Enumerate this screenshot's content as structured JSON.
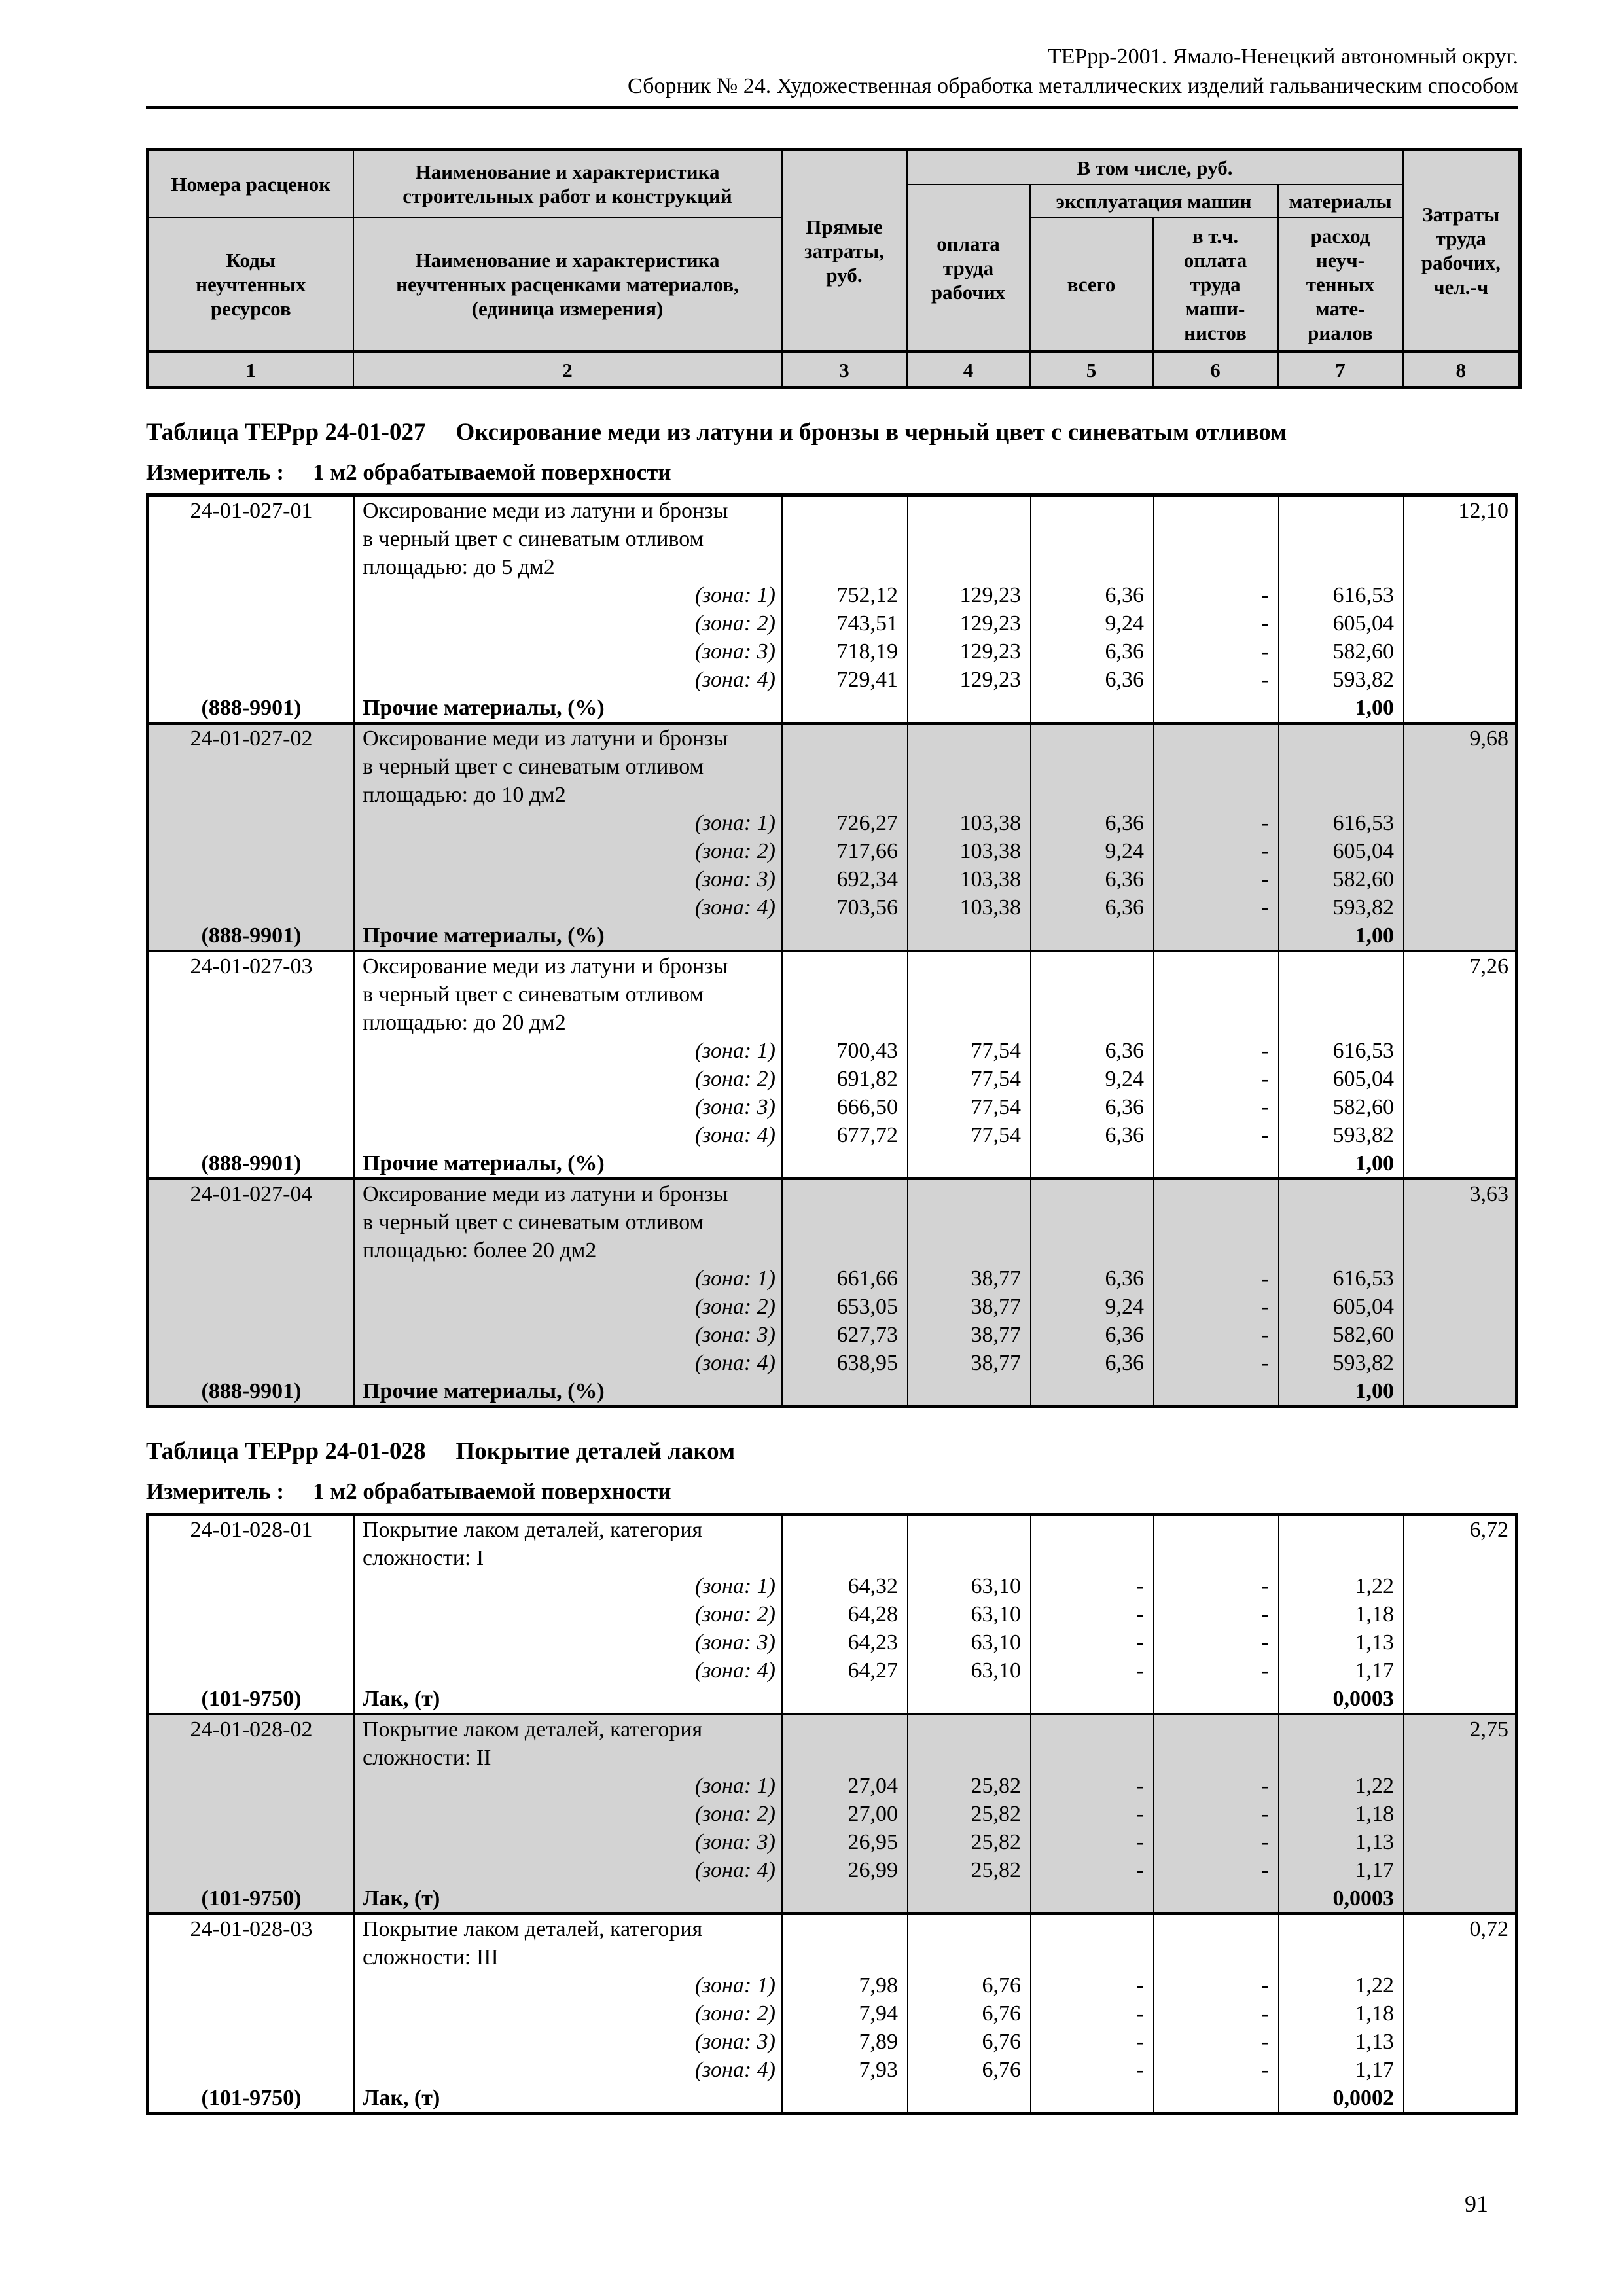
{
  "page": {
    "header_line1": "ТЕРрр-2001. Ямало-Ненецкий автономный округ.",
    "header_line2": "Сборник № 24. Художественная обработка металлических изделий гальваническим способом",
    "page_number": "91"
  },
  "styles": {
    "shaded_bg": "#d3d3d3",
    "border_color": "#000000",
    "text_color": "#000000"
  },
  "column_header": {
    "rate_numbers": "Номера расценок",
    "resource_codes": "Коды\nнеучтенных\nресурсов",
    "work_name": "Наименование и характеристика\nстроительных работ и конструкций",
    "material_name": "Наименование и характеристика\nнеучтенных расценками материалов,\n(единица измерения)",
    "direct_costs": "Прямые\nзатраты,\nруб.",
    "including": "В том числе, руб.",
    "labor_pay": "оплата\nтруда\nрабочих",
    "machines": "эксплуатация машин",
    "machines_total": "всего",
    "machinists_pay": "в т.ч.\nоплата\nтруда\nмаши-\nнистов",
    "materials": "материалы",
    "materials_consumption": "расход\nнеуч-\nтенных\nмате-\nриалов",
    "labor_costs": "Затраты\nтруда\nрабочих,\nчел.-ч",
    "column_numbers": [
      "1",
      "2",
      "3",
      "4",
      "5",
      "6",
      "7",
      "8"
    ]
  },
  "tables": [
    {
      "title_label": "Таблица ТЕРрр 24-01-027",
      "title_text": "Оксирование меди из латуни и бронзы в черный цвет с синеватым отливом",
      "measure_label": "Измеритель :",
      "measure_value": "1 м2 обрабатываемой поверхности",
      "blocks": [
        {
          "shaded": false,
          "code": "24-01-027-01",
          "description": [
            "Оксирование меди из латуни и бронзы",
            "в черный цвет с синеватым отливом",
            "площадью: до 5 дм2"
          ],
          "labor_hours": "12,10",
          "zones": [
            {
              "label": "(зона: 1)",
              "values": [
                "752,12",
                "129,23",
                "6,36",
                "-",
                "616,53"
              ]
            },
            {
              "label": "(зона: 2)",
              "values": [
                "743,51",
                "129,23",
                "9,24",
                "-",
                "605,04"
              ]
            },
            {
              "label": "(зона: 3)",
              "values": [
                "718,19",
                "129,23",
                "6,36",
                "-",
                "582,60"
              ]
            },
            {
              "label": "(зона: 4)",
              "values": [
                "729,41",
                "129,23",
                "6,36",
                "-",
                "593,82"
              ]
            }
          ],
          "footer_code": "(888-9901)",
          "footer_name": "Прочие материалы, (%)",
          "footer_value": "1,00"
        },
        {
          "shaded": true,
          "code": "24-01-027-02",
          "description": [
            "Оксирование меди из латуни и бронзы",
            "в черный цвет с синеватым отливом",
            "площадью: до 10 дм2"
          ],
          "labor_hours": "9,68",
          "zones": [
            {
              "label": "(зона: 1)",
              "values": [
                "726,27",
                "103,38",
                "6,36",
                "-",
                "616,53"
              ]
            },
            {
              "label": "(зона: 2)",
              "values": [
                "717,66",
                "103,38",
                "9,24",
                "-",
                "605,04"
              ]
            },
            {
              "label": "(зона: 3)",
              "values": [
                "692,34",
                "103,38",
                "6,36",
                "-",
                "582,60"
              ]
            },
            {
              "label": "(зона: 4)",
              "values": [
                "703,56",
                "103,38",
                "6,36",
                "-",
                "593,82"
              ]
            }
          ],
          "footer_code": "(888-9901)",
          "footer_name": "Прочие материалы, (%)",
          "footer_value": "1,00"
        },
        {
          "shaded": false,
          "code": "24-01-027-03",
          "description": [
            "Оксирование меди из латуни и бронзы",
            "в черный цвет с синеватым отливом",
            "площадью: до 20 дм2"
          ],
          "labor_hours": "7,26",
          "zones": [
            {
              "label": "(зона: 1)",
              "values": [
                "700,43",
                "77,54",
                "6,36",
                "-",
                "616,53"
              ]
            },
            {
              "label": "(зона: 2)",
              "values": [
                "691,82",
                "77,54",
                "9,24",
                "-",
                "605,04"
              ]
            },
            {
              "label": "(зона: 3)",
              "values": [
                "666,50",
                "77,54",
                "6,36",
                "-",
                "582,60"
              ]
            },
            {
              "label": "(зона: 4)",
              "values": [
                "677,72",
                "77,54",
                "6,36",
                "-",
                "593,82"
              ]
            }
          ],
          "footer_code": "(888-9901)",
          "footer_name": "Прочие материалы, (%)",
          "footer_value": "1,00"
        },
        {
          "shaded": true,
          "code": "24-01-027-04",
          "description": [
            "Оксирование меди из латуни и бронзы",
            "в черный цвет с синеватым отливом",
            "площадью: более 20 дм2"
          ],
          "labor_hours": "3,63",
          "zones": [
            {
              "label": "(зона: 1)",
              "values": [
                "661,66",
                "38,77",
                "6,36",
                "-",
                "616,53"
              ]
            },
            {
              "label": "(зона: 2)",
              "values": [
                "653,05",
                "38,77",
                "9,24",
                "-",
                "605,04"
              ]
            },
            {
              "label": "(зона: 3)",
              "values": [
                "627,73",
                "38,77",
                "6,36",
                "-",
                "582,60"
              ]
            },
            {
              "label": "(зона: 4)",
              "values": [
                "638,95",
                "38,77",
                "6,36",
                "-",
                "593,82"
              ]
            }
          ],
          "footer_code": "(888-9901)",
          "footer_name": "Прочие материалы, (%)",
          "footer_value": "1,00"
        }
      ]
    },
    {
      "title_label": "Таблица ТЕРрр 24-01-028",
      "title_text": "Покрытие деталей лаком",
      "measure_label": "Измеритель :",
      "measure_value": "1 м2 обрабатываемой поверхности",
      "blocks": [
        {
          "shaded": false,
          "code": "24-01-028-01",
          "description": [
            "Покрытие лаком деталей, категория",
            "сложности: I"
          ],
          "labor_hours": "6,72",
          "zones": [
            {
              "label": "(зона: 1)",
              "values": [
                "64,32",
                "63,10",
                "-",
                "-",
                "1,22"
              ]
            },
            {
              "label": "(зона: 2)",
              "values": [
                "64,28",
                "63,10",
                "-",
                "-",
                "1,18"
              ]
            },
            {
              "label": "(зона: 3)",
              "values": [
                "64,23",
                "63,10",
                "-",
                "-",
                "1,13"
              ]
            },
            {
              "label": "(зона: 4)",
              "values": [
                "64,27",
                "63,10",
                "-",
                "-",
                "1,17"
              ]
            }
          ],
          "footer_code": "(101-9750)",
          "footer_name": "Лак, (т)",
          "footer_value": "0,0003"
        },
        {
          "shaded": true,
          "code": "24-01-028-02",
          "description": [
            "Покрытие лаком деталей, категория",
            "сложности: II"
          ],
          "labor_hours": "2,75",
          "zones": [
            {
              "label": "(зона: 1)",
              "values": [
                "27,04",
                "25,82",
                "-",
                "-",
                "1,22"
              ]
            },
            {
              "label": "(зона: 2)",
              "values": [
                "27,00",
                "25,82",
                "-",
                "-",
                "1,18"
              ]
            },
            {
              "label": "(зона: 3)",
              "values": [
                "26,95",
                "25,82",
                "-",
                "-",
                "1,13"
              ]
            },
            {
              "label": "(зона: 4)",
              "values": [
                "26,99",
                "25,82",
                "-",
                "-",
                "1,17"
              ]
            }
          ],
          "footer_code": "(101-9750)",
          "footer_name": "Лак, (т)",
          "footer_value": "0,0003"
        },
        {
          "shaded": false,
          "code": "24-01-028-03",
          "description": [
            "Покрытие лаком деталей, категория",
            "сложности: III"
          ],
          "labor_hours": "0,72",
          "zones": [
            {
              "label": "(зона: 1)",
              "values": [
                "7,98",
                "6,76",
                "-",
                "-",
                "1,22"
              ]
            },
            {
              "label": "(зона: 2)",
              "values": [
                "7,94",
                "6,76",
                "-",
                "-",
                "1,18"
              ]
            },
            {
              "label": "(зона: 3)",
              "values": [
                "7,89",
                "6,76",
                "-",
                "-",
                "1,13"
              ]
            },
            {
              "label": "(зона: 4)",
              "values": [
                "7,93",
                "6,76",
                "-",
                "-",
                "1,17"
              ]
            }
          ],
          "footer_code": "(101-9750)",
          "footer_name": "Лак, (т)",
          "footer_value": "0,0002"
        }
      ]
    }
  ]
}
